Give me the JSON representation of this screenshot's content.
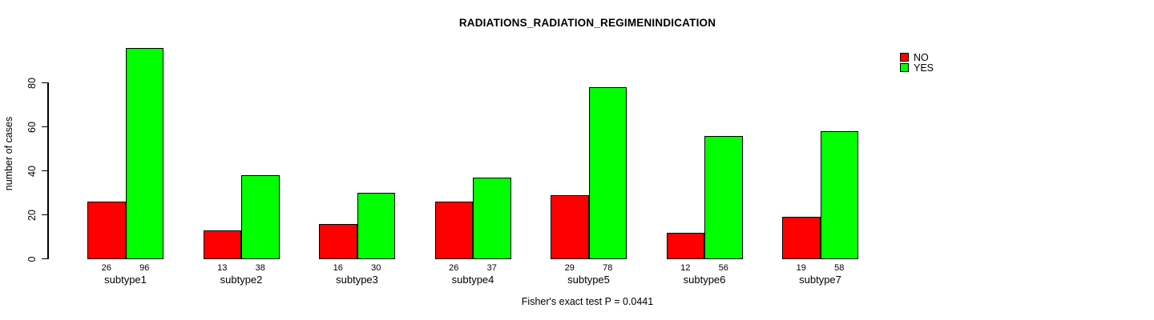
{
  "chart_data": {
    "type": "bar",
    "title": "RADIATIONS_RADIATION_REGIMENINDICATION",
    "ylabel": "number of cases",
    "xlabel": "",
    "categories": [
      "subtype1",
      "subtype2",
      "subtype3",
      "subtype4",
      "subtype5",
      "subtype6",
      "subtype7"
    ],
    "series": [
      {
        "name": "NO",
        "color": "#ff0000",
        "values": [
          26,
          13,
          16,
          26,
          29,
          12,
          19
        ]
      },
      {
        "name": "YES",
        "color": "#00ff00",
        "values": [
          96,
          38,
          30,
          37,
          78,
          56,
          58
        ]
      }
    ],
    "yticks": [
      0,
      20,
      40,
      60,
      80
    ],
    "ylim": [
      0,
      96
    ],
    "bar_value_labels": true,
    "grid": false,
    "legend_position": "top-right",
    "annotation": "Fisher's exact test P = 0.0441"
  }
}
